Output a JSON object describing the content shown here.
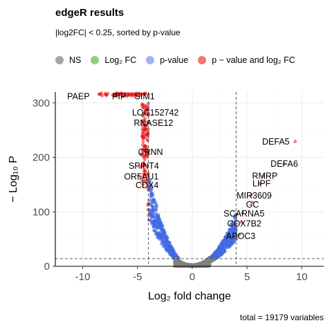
{
  "title": "edgeR results",
  "subtitle": "|log2FC| < 0.25, sorted by p-value",
  "caption": "total = 19179 variables",
  "legend": [
    {
      "label": "NS",
      "color": "#808080"
    },
    {
      "label": "Log₂ FC",
      "color": "#4dac26"
    },
    {
      "label": "p-value",
      "color": "#4169e1"
    },
    {
      "label": "p − value and log₂ FC",
      "color": "#e31a1c"
    }
  ],
  "chart_data": {
    "type": "scatter",
    "title": "edgeR results",
    "subtitle": "|log2FC| < 0.25, sorted by p-value",
    "xlabel": "Log₂ fold change",
    "ylabel": "− Log₁₀ P",
    "xlim": [
      -12.5,
      12
    ],
    "ylim": [
      0,
      320
    ],
    "x_ticks": [
      -10,
      -5,
      0,
      5,
      10
    ],
    "y_ticks": [
      0,
      100,
      200,
      300
    ],
    "cutoffs": {
      "log2fc": [
        -4,
        4
      ],
      "neg_log10_p": 14
    },
    "grid": true,
    "legend_position": "top",
    "labeled_genes": [
      {
        "name": "PAEP",
        "x": -8.5,
        "y": 316
      },
      {
        "name": "PIP",
        "x": -5.8,
        "y": 316
      },
      {
        "name": "SIM1",
        "x": -4.6,
        "y": 316
      },
      {
        "name": "LOC152742",
        "x": -4.5,
        "y": 276
      },
      {
        "name": "RNASE12",
        "x": -4.3,
        "y": 258
      },
      {
        "name": "CRNN",
        "x": -4.7,
        "y": 205
      },
      {
        "name": "SPINT4",
        "x": -4.8,
        "y": 182
      },
      {
        "name": "OR5AU1",
        "x": -4.9,
        "y": 165
      },
      {
        "name": "CDX4",
        "x": -4.5,
        "y": 150
      },
      {
        "name": "DEFA5",
        "x": 9.4,
        "y": 229
      },
      {
        "name": "DEFA6",
        "x": 8.4,
        "y": 188
      },
      {
        "name": "RMRP",
        "x": 6.5,
        "y": 166
      },
      {
        "name": "LIPF",
        "x": 6.2,
        "y": 152
      },
      {
        "name": "MIR3609",
        "x": 5.4,
        "y": 131
      },
      {
        "name": "GC",
        "x": 5.5,
        "y": 117
      },
      {
        "name": "SCARNA5",
        "x": 4.6,
        "y": 98
      },
      {
        "name": "COX7B2",
        "x": 4.5,
        "y": 81
      },
      {
        "name": "APOC3",
        "x": 4.3,
        "y": 58
      }
    ]
  }
}
